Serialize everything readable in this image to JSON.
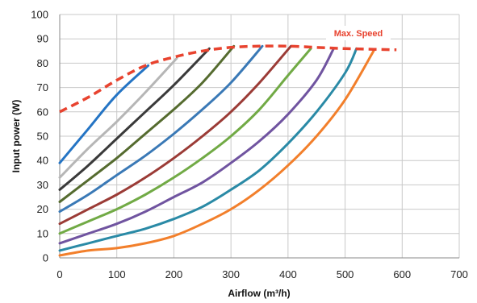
{
  "chart_data": {
    "type": "line",
    "xlabel": "Airflow (m³/h)",
    "ylabel": "Input power (W)",
    "xlim": [
      0,
      700
    ],
    "ylim": [
      0,
      100
    ],
    "xticks": [
      "0",
      "100",
      "200",
      "300",
      "400",
      "500",
      "600",
      "700"
    ],
    "yticks": [
      "0",
      "10",
      "20",
      "30",
      "40",
      "50",
      "60",
      "70",
      "80",
      "90",
      "100"
    ],
    "grid": true,
    "annotation": "Max. Speed",
    "max_speed_curve": {
      "name": "Max. Speed",
      "color": "#e8432f",
      "style": "dashed",
      "x": [
        0,
        50,
        100,
        150,
        200,
        250,
        300,
        350,
        400,
        450,
        500,
        550,
        590
      ],
      "y": [
        60,
        66,
        73,
        79,
        82.5,
        85,
        86.5,
        87,
        87,
        86.5,
        86,
        85.7,
        85.5
      ]
    },
    "series": [
      {
        "color": "#2474c4",
        "x": [
          0,
          50,
          100,
          155
        ],
        "y": [
          39,
          53,
          67,
          79
        ]
      },
      {
        "color": "#b6b6b6",
        "x": [
          0,
          50,
          100,
          150,
          205
        ],
        "y": [
          33,
          45,
          56,
          68,
          82
        ]
      },
      {
        "color": "#3a3a3a",
        "x": [
          0,
          50,
          100,
          150,
          200,
          262
        ],
        "y": [
          28,
          38,
          49,
          60,
          71,
          86
        ]
      },
      {
        "color": "#556b2f",
        "x": [
          0,
          50,
          100,
          150,
          200,
          250,
          305
        ],
        "y": [
          23,
          32,
          41,
          51,
          61,
          72,
          87
        ]
      },
      {
        "color": "#3a79b6",
        "x": [
          0,
          50,
          100,
          150,
          200,
          250,
          300,
          355
        ],
        "y": [
          19,
          26,
          34,
          42,
          51,
          61,
          72,
          87
        ]
      },
      {
        "color": "#9b3b36",
        "x": [
          0,
          50,
          100,
          150,
          200,
          250,
          300,
          350,
          405
        ],
        "y": [
          14,
          20,
          26,
          33,
          41,
          50,
          60,
          72,
          87
        ]
      },
      {
        "color": "#71aa45",
        "x": [
          0,
          50,
          100,
          150,
          200,
          250,
          300,
          350,
          400,
          440
        ],
        "y": [
          10,
          15,
          20,
          26,
          33,
          41,
          50,
          61,
          75,
          86
        ]
      },
      {
        "color": "#7054a0",
        "x": [
          0,
          50,
          100,
          150,
          200,
          250,
          300,
          350,
          400,
          450,
          480
        ],
        "y": [
          6,
          10,
          14,
          19,
          25,
          31,
          39,
          48,
          59,
          73,
          86
        ]
      },
      {
        "color": "#2a8aa6",
        "x": [
          0,
          50,
          100,
          150,
          200,
          250,
          300,
          350,
          400,
          450,
          500,
          520
        ],
        "y": [
          3,
          6,
          9,
          12,
          16,
          21,
          28,
          36,
          47,
          60,
          76,
          86
        ]
      },
      {
        "color": "#f27f2b",
        "x": [
          0,
          50,
          100,
          150,
          200,
          250,
          300,
          350,
          400,
          450,
          500,
          550
        ],
        "y": [
          1,
          3,
          4,
          6,
          9,
          14,
          20,
          28,
          38,
          50,
          65,
          85
        ]
      }
    ]
  }
}
